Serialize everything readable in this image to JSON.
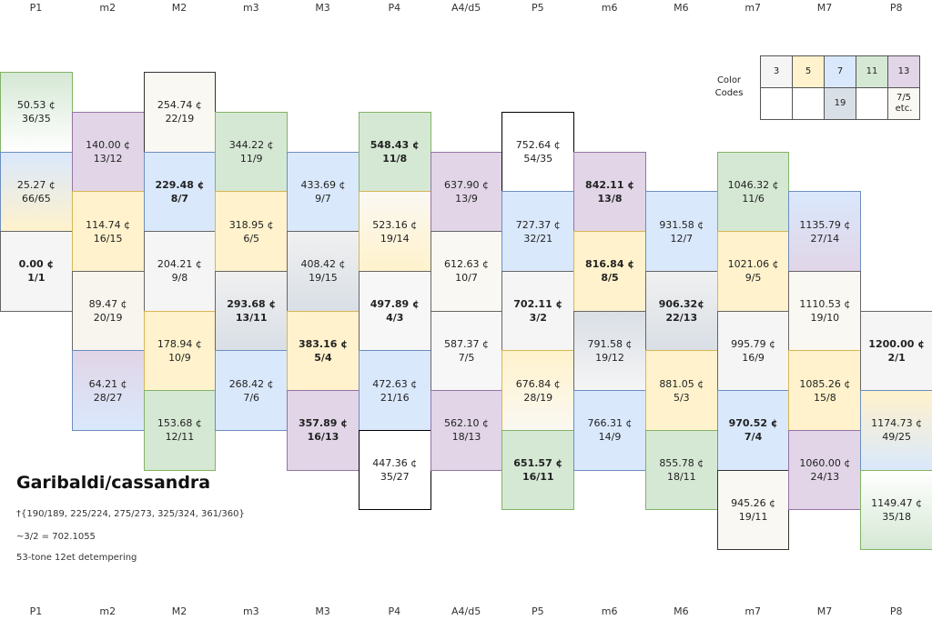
{
  "title": "Garibaldi/cassandra",
  "notes": [
    "†{190/189, 225/224, 275/273, 325/324, 361/360}",
    "~3/2 = 702.1055",
    "53-tone 12et detempering"
  ],
  "legend": {
    "label": "Color Codes",
    "row1": [
      {
        "label": "3",
        "fill": "#f5f5f5"
      },
      {
        "label": "5",
        "fill": "#fff2cc"
      },
      {
        "label": "7",
        "fill": "#dae8fc"
      },
      {
        "label": "11",
        "fill": "#d5e8d4"
      },
      {
        "label": "13",
        "fill": "#e1d5e7"
      }
    ],
    "row2": [
      {
        "label": null,
        "fill": "#ffffff"
      },
      {
        "label": null,
        "fill": "#ffffff"
      },
      {
        "label": "19",
        "fill": "#d9dfe6"
      },
      {
        "label": null,
        "fill": "#ffffff"
      },
      {
        "label": "7/5 etc.",
        "fill": "#faf8f2"
      }
    ]
  },
  "columns": [
    {
      "label": "P1",
      "cells": [
        {
          "cents": "50.53 ¢",
          "ratio": "36/35",
          "fill": "#d5e8d4",
          "fill2": "#ffffff",
          "stroke": "#82b366"
        },
        {
          "cents": "25.27 ¢",
          "ratio": "66/65",
          "fill": "#dae8fc",
          "fill2": "#fff2cc",
          "stroke": "#6c8ebf"
        },
        {
          "cents": "0.00 ¢",
          "ratio": "1/1",
          "fill": "#f5f5f5",
          "stroke": "#666666",
          "bold": true
        }
      ]
    },
    {
      "label": "m2",
      "cells": [
        {
          "cents": "140.00 ¢",
          "ratio": "13/12",
          "fill": "#e1d5e7",
          "stroke": "#9673a6"
        },
        {
          "cents": "114.74 ¢",
          "ratio": "16/15",
          "fill": "#fff2cc",
          "stroke": "#d6b656"
        },
        {
          "cents": "89.47 ¢",
          "ratio": "20/19",
          "fill": "#f8f5ee",
          "stroke": "#666666"
        },
        {
          "cents": "64.21 ¢",
          "ratio": "28/27",
          "fill": "#e1d5e7",
          "fill2": "#dae8fc",
          "stroke": "#6c8ebf"
        }
      ]
    },
    {
      "label": "M2",
      "cells": [
        {
          "cents": "254.74 ¢",
          "ratio": "22/19",
          "fill": "#faf8f2",
          "stroke": "#333333"
        },
        {
          "cents": "229.48 ¢",
          "ratio": "8/7",
          "fill": "#dae8fc",
          "stroke": "#6c8ebf",
          "bold": true
        },
        {
          "cents": "204.21 ¢",
          "ratio": "9/8",
          "fill": "#f5f5f5",
          "stroke": "#666666"
        },
        {
          "cents": "178.94 ¢",
          "ratio": "10/9",
          "fill": "#fff2cc",
          "stroke": "#d6b656"
        },
        {
          "cents": "153.68 ¢",
          "ratio": "12/11",
          "fill": "#d5e8d4",
          "stroke": "#82b366"
        }
      ]
    },
    {
      "label": "m3",
      "cells": [
        {
          "cents": "344.22 ¢",
          "ratio": "11/9",
          "fill": "#d5e8d4",
          "stroke": "#82b366"
        },
        {
          "cents": "318.95 ¢",
          "ratio": "6/5",
          "fill": "#fff2cc",
          "stroke": "#d6b656"
        },
        {
          "cents": "293.68 ¢",
          "ratio": "13/11",
          "fill": "#f0f0f0",
          "fill2": "#d9dfe6",
          "stroke": "#666666",
          "bold": true
        },
        {
          "cents": "268.42 ¢",
          "ratio": "7/6",
          "fill": "#dae8fc",
          "stroke": "#6c8ebf"
        }
      ]
    },
    {
      "label": "M3",
      "cells": [
        {
          "cents": "433.69 ¢",
          "ratio": "9/7",
          "fill": "#dae8fc",
          "stroke": "#6c8ebf"
        },
        {
          "cents": "408.42 ¢",
          "ratio": "19/15",
          "fill": "#f0f0f0",
          "fill2": "#d9dfe6",
          "stroke": "#666666"
        },
        {
          "cents": "383.16 ¢",
          "ratio": "5/4",
          "fill": "#fff2cc",
          "stroke": "#d6b656",
          "bold": true
        },
        {
          "cents": "357.89 ¢",
          "ratio": "16/13",
          "fill": "#e1d5e7",
          "stroke": "#9673a6",
          "bold": true
        }
      ]
    },
    {
      "label": "P4",
      "cells": [
        {
          "cents": "548.43 ¢",
          "ratio": "11/8",
          "fill": "#d5e8d4",
          "stroke": "#82b366",
          "bold": true
        },
        {
          "cents": "523.16 ¢",
          "ratio": "19/14",
          "fill": "#faf8f2",
          "fill2": "#fff2cc",
          "stroke": "#d6b656"
        },
        {
          "cents": "497.89 ¢",
          "ratio": "4/3",
          "fill": "#f7f7f7",
          "stroke": "#666666",
          "bold": true
        },
        {
          "cents": "472.63 ¢",
          "ratio": "21/16",
          "fill": "#dae8fc",
          "stroke": "#6c8ebf"
        },
        {
          "cents": "447.36 ¢",
          "ratio": "35/27",
          "fill": "#ffffff",
          "stroke": "#000000"
        }
      ]
    },
    {
      "label": "A4/d5",
      "cells": [
        {
          "cents": "637.90 ¢",
          "ratio": "13/9",
          "fill": "#e1d5e7",
          "stroke": "#9673a6"
        },
        {
          "cents": "612.63 ¢",
          "ratio": "10/7",
          "fill": "#faf8f2",
          "stroke": "#666666"
        },
        {
          "cents": "587.37 ¢",
          "ratio": "7/5",
          "fill": "#f7f7f7",
          "stroke": "#666666"
        },
        {
          "cents": "562.10 ¢",
          "ratio": "18/13",
          "fill": "#e1d5e7",
          "stroke": "#9673a6"
        }
      ]
    },
    {
      "label": "P5",
      "cells": [
        {
          "cents": "752.64 ¢",
          "ratio": "54/35",
          "fill": "#ffffff",
          "stroke": "#000000"
        },
        {
          "cents": "727.37 ¢",
          "ratio": "32/21",
          "fill": "#dae8fc",
          "stroke": "#6c8ebf"
        },
        {
          "cents": "702.11 ¢",
          "ratio": "3/2",
          "fill": "#f5f5f5",
          "stroke": "#666666",
          "bold": true
        },
        {
          "cents": "676.84 ¢",
          "ratio": "28/19",
          "fill": "#fff2cc",
          "fill2": "#faf8f2",
          "stroke": "#d6b656"
        },
        {
          "cents": "651.57 ¢",
          "ratio": "16/11",
          "fill": "#d5e8d4",
          "stroke": "#82b366",
          "bold": true
        }
      ]
    },
    {
      "label": "m6",
      "cells": [
        {
          "cents": "842.11 ¢",
          "ratio": "13/8",
          "fill": "#e1d5e7",
          "stroke": "#9673a6",
          "bold": true
        },
        {
          "cents": "816.84 ¢",
          "ratio": "8/5",
          "fill": "#fff2cc",
          "stroke": "#d6b656",
          "bold": true
        },
        {
          "cents": "791.58 ¢",
          "ratio": "19/12",
          "fill": "#d9dfe6",
          "fill2": "#f5f5f5",
          "stroke": "#666666"
        },
        {
          "cents": "766.31 ¢",
          "ratio": "14/9",
          "fill": "#dae8fc",
          "stroke": "#6c8ebf"
        }
      ]
    },
    {
      "label": "M6",
      "cells": [
        {
          "cents": "931.58 ¢",
          "ratio": "12/7",
          "fill": "#dae8fc",
          "stroke": "#6c8ebf"
        },
        {
          "cents": "906.32¢",
          "ratio": "22/13",
          "fill": "#f0f0f0",
          "fill2": "#d9dfe6",
          "stroke": "#666666",
          "bold": true
        },
        {
          "cents": "881.05 ¢",
          "ratio": "5/3",
          "fill": "#fff2cc",
          "stroke": "#d6b656"
        },
        {
          "cents": "855.78 ¢",
          "ratio": "18/11",
          "fill": "#d5e8d4",
          "stroke": "#82b366"
        }
      ]
    },
    {
      "label": "m7",
      "cells": [
        {
          "cents": "1046.32 ¢",
          "ratio": "11/6",
          "fill": "#d5e8d4",
          "stroke": "#82b366"
        },
        {
          "cents": "1021.06 ¢",
          "ratio": "9/5",
          "fill": "#fff2cc",
          "stroke": "#d6b656"
        },
        {
          "cents": "995.79 ¢",
          "ratio": "16/9",
          "fill": "#f5f5f5",
          "stroke": "#666666"
        },
        {
          "cents": "970.52 ¢",
          "ratio": "7/4",
          "fill": "#dae8fc",
          "stroke": "#6c8ebf",
          "bold": true
        },
        {
          "cents": "945.26 ¢",
          "ratio": "19/11",
          "fill": "#faf8f2",
          "stroke": "#333333"
        }
      ]
    },
    {
      "label": "M7",
      "cells": [
        {
          "cents": "1135.79 ¢",
          "ratio": "27/14",
          "fill": "#dae8fc",
          "fill2": "#e1d5e7",
          "stroke": "#6c8ebf"
        },
        {
          "cents": "1110.53 ¢",
          "ratio": "19/10",
          "fill": "#faf8f2",
          "stroke": "#666666"
        },
        {
          "cents": "1085.26 ¢",
          "ratio": "15/8",
          "fill": "#fff2cc",
          "stroke": "#d6b656"
        },
        {
          "cents": "1060.00 ¢",
          "ratio": "24/13",
          "fill": "#e1d5e7",
          "stroke": "#9673a6"
        }
      ]
    },
    {
      "label": "P8",
      "cells": [
        {
          "cents": "1200.00 ¢",
          "ratio": "2/1",
          "fill": "#f5f5f5",
          "stroke": "#666666",
          "bold": true
        },
        {
          "cents": "1174.73 ¢",
          "ratio": "49/25",
          "fill": "#fff2cc",
          "fill2": "#dae8fc",
          "stroke": "#6c8ebf"
        },
        {
          "cents": "1149.47 ¢",
          "ratio": "35/18",
          "fill": "#ffffff",
          "fill2": "#d5e8d4",
          "stroke": "#82b366"
        }
      ]
    }
  ]
}
